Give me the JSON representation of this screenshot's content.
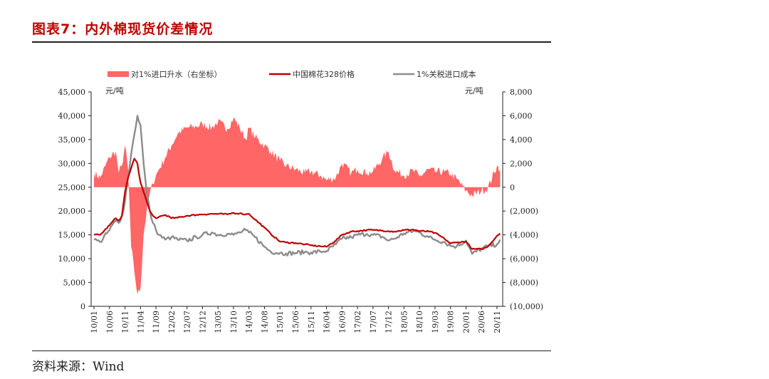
{
  "title": "图表7：内外棉现货价差情况",
  "source": "资料来源：Wind",
  "colors": {
    "spread": "#ff6666",
    "china": "#c00000",
    "import": "#8c8c8c",
    "axis": "#1f1f1f"
  },
  "chart_data": {
    "type": "line",
    "left_unit": "元/吨",
    "right_unit": "元/吨",
    "left_ylim": [
      0,
      45000
    ],
    "right_ylim": [
      -10000,
      8000
    ],
    "left_ticks": [
      "45,000",
      "40,000",
      "35,000",
      "30,000",
      "25,000",
      "20,000",
      "15,000",
      "10,000",
      "5,000",
      "0"
    ],
    "right_ticks": [
      "8,000",
      "6,000",
      "4,000",
      "2,000",
      "0",
      "(2,000)",
      "(4,000)",
      "(6,000)",
      "(8,000)",
      "(10,000)"
    ],
    "x_labels": [
      "10/01",
      "10/06",
      "10/11",
      "11/04",
      "11/09",
      "12/02",
      "12/07",
      "12/12",
      "13/05",
      "13/10",
      "14/03",
      "14/08",
      "15/01",
      "15/06",
      "15/11",
      "16/04",
      "16/09",
      "17/02",
      "17/07",
      "17/12",
      "18/05",
      "18/10",
      "19/03",
      "19/08",
      "20/01",
      "20/06",
      "20/11"
    ],
    "legend": [
      "对1%进口升水（右坐标）",
      "中国棉花328价格",
      "1%关税进口成本"
    ],
    "series": [
      {
        "name": "对1%进口升水（右坐标）",
        "axis": "right",
        "style": "area",
        "x": [
          "10/01",
          "10/03",
          "10/06",
          "10/08",
          "10/09",
          "10/10",
          "10/11",
          "10/12",
          "11/01",
          "11/02",
          "11/03",
          "11/04",
          "11/05",
          "11/06",
          "11/07",
          "11/08",
          "11/09",
          "11/10",
          "11/12",
          "12/02",
          "12/04",
          "12/07",
          "12/10",
          "12/12",
          "13/03",
          "13/05",
          "13/08",
          "13/10",
          "13/12",
          "14/02",
          "14/03",
          "14/05",
          "14/08",
          "14/10",
          "15/01",
          "15/03",
          "15/06",
          "15/09",
          "15/11",
          "16/02",
          "16/04",
          "16/07",
          "16/09",
          "16/12",
          "17/02",
          "17/05",
          "17/07",
          "17/10",
          "17/12",
          "18/02",
          "18/05",
          "18/08",
          "18/10",
          "19/01",
          "19/03",
          "19/06",
          "19/08",
          "19/10",
          "20/01",
          "20/03",
          "20/06",
          "20/08",
          "20/11",
          "20/12"
        ],
        "values": [
          1200,
          800,
          2500,
          3000,
          1200,
          1800,
          3500,
          1500,
          -5000,
          -7000,
          -9000,
          -8500,
          -4000,
          -2000,
          -500,
          300,
          1000,
          1500,
          2500,
          3500,
          4500,
          5000,
          5100,
          5300,
          5000,
          5500,
          4900,
          5800,
          5000,
          4000,
          5000,
          4200,
          3500,
          3000,
          2200,
          1800,
          1500,
          1200,
          1300,
          1000,
          600,
          800,
          2000,
          1200,
          1500,
          1200,
          1300,
          2400,
          3000,
          1400,
          1000,
          1400,
          900,
          1500,
          1300,
          1300,
          1100,
          700,
          -300,
          -700,
          -300,
          -100,
          1800,
          1500
        ]
      },
      {
        "name": "中国棉花328价格",
        "axis": "left",
        "style": "line",
        "x": [
          "10/01",
          "10/03",
          "10/06",
          "10/08",
          "10/09",
          "10/10",
          "10/11",
          "10/12",
          "11/01",
          "11/02",
          "11/03",
          "11/04",
          "11/05",
          "11/06",
          "11/07",
          "11/08",
          "11/09",
          "11/10",
          "11/12",
          "12/02",
          "12/04",
          "12/07",
          "12/10",
          "12/12",
          "13/03",
          "13/05",
          "13/08",
          "13/10",
          "13/12",
          "14/02",
          "14/03",
          "14/05",
          "14/08",
          "14/10",
          "15/01",
          "15/03",
          "15/06",
          "15/09",
          "15/11",
          "16/02",
          "16/04",
          "16/07",
          "16/09",
          "16/12",
          "17/02",
          "17/05",
          "17/07",
          "17/10",
          "17/12",
          "18/02",
          "18/05",
          "18/08",
          "18/10",
          "19/01",
          "19/03",
          "19/06",
          "19/08",
          "19/10",
          "20/01",
          "20/03",
          "20/06",
          "20/08",
          "20/11",
          "20/12"
        ],
        "values": [
          15000,
          15000,
          17000,
          18500,
          18000,
          19000,
          24000,
          27000,
          29000,
          31000,
          30000,
          26000,
          24000,
          22000,
          20000,
          19000,
          18500,
          18800,
          19200,
          18500,
          18600,
          19000,
          19200,
          19300,
          19400,
          19400,
          19300,
          19600,
          19500,
          19300,
          19400,
          18200,
          16500,
          15200,
          13600,
          13400,
          13300,
          13000,
          12800,
          12600,
          12500,
          13800,
          15000,
          15700,
          15800,
          16000,
          16000,
          15900,
          15800,
          15700,
          16000,
          16100,
          15800,
          15700,
          15400,
          14200,
          13200,
          13400,
          13600,
          12000,
          12000,
          12500,
          14800,
          15300
        ]
      },
      {
        "name": "1%关税进口成本",
        "axis": "left",
        "style": "line",
        "x": [
          "10/01",
          "10/03",
          "10/06",
          "10/08",
          "10/09",
          "10/10",
          "10/11",
          "10/12",
          "11/01",
          "11/02",
          "11/03",
          "11/04",
          "11/05",
          "11/06",
          "11/07",
          "11/08",
          "11/09",
          "11/10",
          "11/12",
          "12/02",
          "12/04",
          "12/07",
          "12/10",
          "12/12",
          "13/03",
          "13/05",
          "13/08",
          "13/10",
          "13/12",
          "14/02",
          "14/03",
          "14/05",
          "14/08",
          "14/10",
          "15/01",
          "15/03",
          "15/06",
          "15/09",
          "15/11",
          "16/02",
          "16/04",
          "16/07",
          "16/09",
          "16/12",
          "17/02",
          "17/05",
          "17/07",
          "17/10",
          "17/12",
          "18/02",
          "18/05",
          "18/08",
          "18/10",
          "19/01",
          "19/03",
          "19/06",
          "19/08",
          "19/10",
          "20/01",
          "20/03",
          "20/06",
          "20/08",
          "20/11",
          "20/12"
        ],
        "values": [
          14000,
          13500,
          16000,
          18000,
          17500,
          19000,
          22000,
          27000,
          32000,
          36000,
          40000,
          38000,
          30000,
          24000,
          20000,
          17500,
          16000,
          15000,
          14000,
          14500,
          14000,
          13800,
          14500,
          15000,
          15500,
          15000,
          15200,
          15000,
          15500,
          16000,
          15500,
          14500,
          12500,
          11500,
          11200,
          11100,
          11200,
          11400,
          11300,
          11500,
          11600,
          13000,
          14200,
          14500,
          15000,
          15200,
          15000,
          14600,
          13800,
          14200,
          15300,
          15800,
          15500,
          14500,
          14000,
          13500,
          12700,
          12600,
          13800,
          11000,
          12100,
          12600,
          13000,
          14000
        ]
      }
    ]
  }
}
